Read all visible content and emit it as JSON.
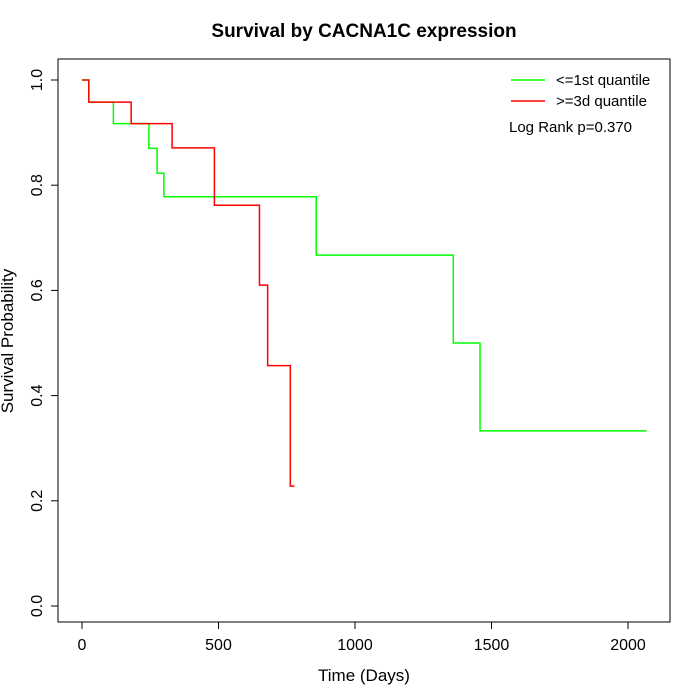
{
  "chart_data": {
    "type": "line",
    "title": "Survival by CACNA1C expression",
    "xlabel": "Time (Days)",
    "ylabel": "Survival Probability",
    "xlim": [
      0,
      2070
    ],
    "ylim": [
      0,
      1.0
    ],
    "xticks": [
      0,
      500,
      1000,
      1500,
      2000
    ],
    "yticks": [
      0.0,
      0.2,
      0.4,
      0.6,
      0.8,
      1.0
    ],
    "xtick_labels": [
      "0",
      "500",
      "1000",
      "1500",
      "2000"
    ],
    "ytick_labels": [
      "0.0",
      "0.2",
      "0.4",
      "0.6",
      "0.8",
      "1.0"
    ],
    "grid": false,
    "legend_position": "top-right",
    "annotation": "Log Rank p=0.370",
    "series": [
      {
        "name": "<=1st quantile",
        "color": "#00ff00",
        "step_points": [
          [
            0,
            1.0
          ],
          [
            25,
            0.958
          ],
          [
            115,
            0.917
          ],
          [
            245,
            0.87
          ],
          [
            275,
            0.823
          ],
          [
            300,
            0.778
          ],
          [
            858,
            0.667
          ],
          [
            1360,
            0.5
          ],
          [
            1458,
            0.333
          ],
          [
            2068,
            0.333
          ]
        ]
      },
      {
        "name": ">=3d quantile",
        "color": "#ff0000",
        "step_points": [
          [
            0,
            1.0
          ],
          [
            25,
            0.958
          ],
          [
            180,
            0.917
          ],
          [
            330,
            0.871
          ],
          [
            485,
            0.762
          ],
          [
            650,
            0.61
          ],
          [
            680,
            0.457
          ],
          [
            763,
            0.228
          ],
          [
            778,
            0.228
          ]
        ]
      }
    ]
  }
}
